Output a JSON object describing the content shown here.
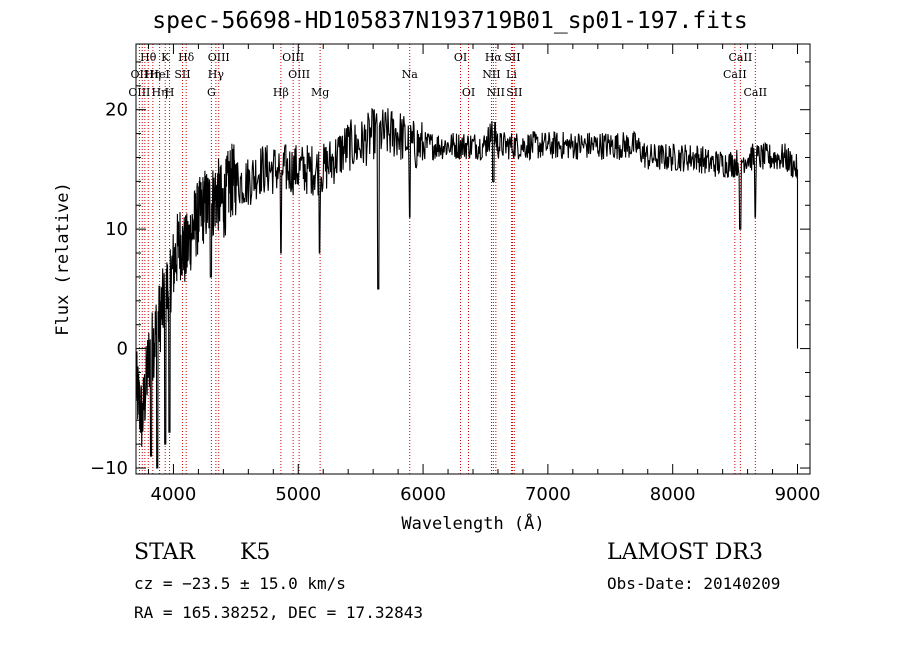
{
  "chart_data": {
    "type": "line",
    "title": "spec-56698-HD105837N193719B01_sp01-197.fits",
    "xlabel": "Wavelength (Å)",
    "ylabel": "Flux (relative)",
    "xlim": [
      3700,
      9100
    ],
    "ylim": [
      -10.5,
      25.5
    ],
    "xticks": [
      4000,
      5000,
      6000,
      7000,
      8000,
      9000
    ],
    "yticks": [
      -10,
      0,
      10,
      20
    ],
    "grid": false,
    "series": [
      {
        "name": "spectrum",
        "x": [
          3700,
          3750,
          3800,
          3850,
          3900,
          3950,
          4000,
          4050,
          4100,
          4150,
          4200,
          4250,
          4300,
          4350,
          4400,
          4450,
          4500,
          4600,
          4700,
          4800,
          4900,
          5000,
          5100,
          5200,
          5300,
          5400,
          5500,
          5600,
          5700,
          5800,
          5900,
          6000,
          6100,
          6200,
          6300,
          6400,
          6500,
          6563,
          6600,
          6700,
          6800,
          6900,
          7000,
          7100,
          7200,
          7300,
          7400,
          7500,
          7600,
          7700,
          7800,
          7900,
          8000,
          8100,
          8200,
          8300,
          8400,
          8500,
          8600,
          8700,
          8800,
          8900,
          9000
        ],
        "y": [
          -3,
          -6,
          -1,
          1,
          3,
          5,
          7,
          9,
          8,
          10,
          11,
          12,
          12,
          13,
          12,
          14,
          14,
          14,
          15,
          15,
          15,
          15,
          15,
          15,
          16,
          17,
          17,
          18,
          18,
          18,
          17,
          17,
          17,
          17,
          17,
          17,
          17,
          18.5,
          17,
          17,
          17,
          17,
          17,
          17,
          17,
          17,
          17,
          17,
          17,
          17,
          16,
          16,
          16,
          16,
          16,
          15.5,
          15.5,
          15.5,
          16,
          16,
          16,
          16,
          15
        ]
      }
    ],
    "line_labels": [
      {
        "text": "Hθ",
        "wl": 3798,
        "row": 1
      },
      {
        "text": "OII",
        "wl": 3727,
        "row": 2
      },
      {
        "text": "OIII",
        "wl": 3727,
        "row": 3
      },
      {
        "text": "Hη",
        "wl": 3835,
        "row": 2
      },
      {
        "text": "K",
        "wl": 3934,
        "row": 1
      },
      {
        "text": "HeI",
        "wl": 3889,
        "row": 2
      },
      {
        "text": "Hη",
        "wl": 3889,
        "row": 3
      },
      {
        "text": "H",
        "wl": 3969,
        "row": 3
      },
      {
        "text": "Hδ",
        "wl": 4102,
        "row": 1
      },
      {
        "text": "SII",
        "wl": 4072,
        "row": 2
      },
      {
        "text": "OIII",
        "wl": 4363,
        "row": 1
      },
      {
        "text": "Hγ",
        "wl": 4340,
        "row": 2
      },
      {
        "text": "G",
        "wl": 4304,
        "row": 3
      },
      {
        "text": "Hβ",
        "wl": 4861,
        "row": 3
      },
      {
        "text": "OIII",
        "wl": 4959,
        "row": 1
      },
      {
        "text": "OIII",
        "wl": 5007,
        "row": 2
      },
      {
        "text": "Mg",
        "wl": 5175,
        "row": 3
      },
      {
        "text": "Na",
        "wl": 5893,
        "row": 2
      },
      {
        "text": "OI",
        "wl": 6300,
        "row": 1
      },
      {
        "text": "OI",
        "wl": 6364,
        "row": 3
      },
      {
        "text": "Hα",
        "wl": 6563,
        "row": 1
      },
      {
        "text": "SII",
        "wl": 6716,
        "row": 1
      },
      {
        "text": "NII",
        "wl": 6548,
        "row": 2
      },
      {
        "text": "Li",
        "wl": 6708,
        "row": 2
      },
      {
        "text": "NII",
        "wl": 6583,
        "row": 3
      },
      {
        "text": "SII",
        "wl": 6731,
        "row": 3
      },
      {
        "text": "CaII",
        "wl": 8542,
        "row": 1
      },
      {
        "text": "CaII",
        "wl": 8498,
        "row": 2
      },
      {
        "text": "CaII",
        "wl": 8662,
        "row": 3
      }
    ],
    "line_markers": [
      3727,
      3750,
      3771,
      3798,
      3835,
      3889,
      3934,
      3969,
      4072,
      4102,
      4304,
      4340,
      4363,
      4861,
      4959,
      5007,
      5175,
      5893,
      6300,
      6364,
      6548,
      6563,
      6583,
      6708,
      6716,
      6731,
      8498,
      8542,
      8662
    ]
  },
  "info": {
    "class": "STAR",
    "subclass": "K5",
    "survey": "LAMOST DR3",
    "redshift": "cz = −23.5 ± 15.0 km/s",
    "obs_date": "Obs-Date: 20140209",
    "coords": "RA = 165.38252, DEC =  17.32843"
  },
  "colors": {
    "spectrum": "#000000",
    "marker": "#cc0000",
    "axes": "#000000"
  }
}
